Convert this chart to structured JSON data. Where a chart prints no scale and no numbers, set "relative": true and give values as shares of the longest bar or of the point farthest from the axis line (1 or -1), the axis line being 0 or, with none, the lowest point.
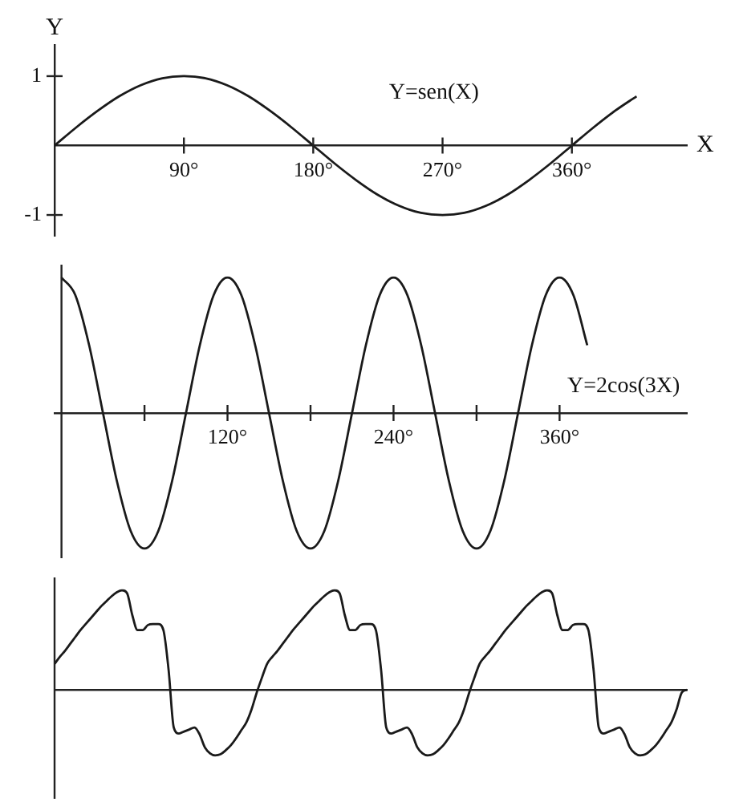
{
  "chart_data": [
    {
      "type": "line",
      "xlabel": "X",
      "ylabel": "Y",
      "xlim": [
        0,
        440
      ],
      "ylim": [
        -1.3,
        1.45
      ],
      "marker": "none",
      "xticks": [
        {
          "value": 90,
          "label": "90°"
        },
        {
          "value": 180,
          "label": "180°"
        },
        {
          "value": 270,
          "label": "270°"
        },
        {
          "value": 360,
          "label": "360°"
        }
      ],
      "yticks": [
        1,
        -1
      ],
      "x": [
        0,
        15,
        30,
        45,
        60,
        75,
        90,
        105,
        120,
        135,
        150,
        165,
        180,
        195,
        210,
        225,
        240,
        255,
        270,
        285,
        300,
        315,
        330,
        345,
        360,
        375,
        390,
        405
      ],
      "series": [
        {
          "name": "Y=sen(X)",
          "color": "#1a1a1a",
          "values": [
            0,
            0.26,
            0.5,
            0.71,
            0.87,
            0.97,
            1,
            0.97,
            0.87,
            0.71,
            0.5,
            0.26,
            0,
            -0.26,
            -0.5,
            -0.71,
            -0.87,
            -0.97,
            -1,
            -0.97,
            -0.87,
            -0.71,
            -0.5,
            -0.26,
            0,
            0.26,
            0.5,
            0.71
          ]
        }
      ]
    },
    {
      "type": "line",
      "relative": true,
      "xlim": [
        -5,
        452
      ],
      "marker": "none",
      "xticks": [
        {
          "value": 60,
          "label": null
        },
        {
          "value": 120,
          "label": "120°"
        },
        {
          "value": 180,
          "label": null
        },
        {
          "value": 240,
          "label": "240°"
        },
        {
          "value": 300,
          "label": null
        },
        {
          "value": 360,
          "label": "360°"
        }
      ],
      "x": [
        0,
        10,
        20,
        30,
        40,
        50,
        60,
        70,
        80,
        90,
        100,
        110,
        120,
        130,
        140,
        150,
        160,
        170,
        180,
        190,
        200,
        210,
        220,
        230,
        240,
        250,
        260,
        270,
        280,
        290,
        300,
        310,
        320,
        330,
        340,
        350,
        360,
        370,
        380
      ],
      "series": [
        {
          "name": "Y=2cos(3X)",
          "color": "#1a1a1a",
          "values": [
            1,
            0.87,
            0.5,
            0,
            -0.5,
            -0.87,
            -1,
            -0.87,
            -0.5,
            0,
            0.5,
            0.87,
            1,
            0.87,
            0.5,
            0,
            -0.5,
            -0.87,
            -1,
            -0.87,
            -0.5,
            0,
            0.5,
            0.87,
            1,
            0.87,
            0.5,
            0,
            -0.5,
            -0.87,
            -1,
            -0.87,
            -0.5,
            0,
            0.5,
            0.87,
            1,
            0.87,
            0.5
          ]
        }
      ]
    },
    {
      "type": "line",
      "relative": true,
      "marker": "none",
      "categories": [
        null,
        null,
        null,
        null,
        null,
        null,
        null,
        null,
        null,
        null,
        null,
        null,
        null,
        null,
        null,
        null,
        null,
        null,
        null,
        null,
        null,
        null,
        null,
        null,
        null,
        null,
        null,
        null,
        null,
        null,
        null,
        null,
        null,
        null,
        null,
        null,
        null,
        null,
        null,
        null,
        null,
        null,
        null,
        null,
        null,
        null,
        null,
        null,
        null,
        null,
        null,
        null,
        null,
        null,
        null,
        null,
        null,
        null,
        null,
        null,
        null,
        null,
        null,
        null,
        null,
        null,
        null,
        null,
        null,
        null,
        null,
        null,
        null,
        null,
        null,
        null,
        null,
        null,
        null,
        null,
        null,
        null,
        null,
        null,
        null,
        null,
        null,
        null,
        null,
        null,
        null,
        null,
        null,
        null,
        null,
        null,
        null,
        null,
        null,
        null,
        null,
        null,
        null,
        null,
        null,
        null,
        null,
        null,
        null,
        null,
        null,
        null,
        null,
        null,
        null,
        null,
        null,
        null,
        null,
        null,
        null,
        null,
        null
      ],
      "series": [
        {
          "color": "#1a1a1a",
          "values": [
            0.26,
            0.33,
            0.39,
            0.46,
            0.53,
            0.6,
            0.66,
            0.72,
            0.78,
            0.84,
            0.89,
            0.94,
            0.98,
            1,
            0.97,
            0.75,
            0.6,
            0.6,
            0.65,
            0.66,
            0.66,
            0.6,
            0.2,
            -0.38,
            -0.44,
            -0.42,
            -0.4,
            -0.38,
            -0.45,
            -0.58,
            -0.64,
            -0.66,
            -0.65,
            -0.61,
            -0.56,
            -0.49,
            -0.41,
            -0.33,
            -0.2,
            -0.03,
            0.12,
            0.26,
            0.33,
            0.39,
            0.46,
            0.53,
            0.6,
            0.66,
            0.72,
            0.78,
            0.84,
            0.89,
            0.94,
            0.98,
            1,
            0.97,
            0.75,
            0.6,
            0.6,
            0.65,
            0.66,
            0.66,
            0.6,
            0.2,
            -0.38,
            -0.44,
            -0.42,
            -0.4,
            -0.38,
            -0.45,
            -0.58,
            -0.64,
            -0.66,
            -0.65,
            -0.61,
            -0.56,
            -0.49,
            -0.41,
            -0.33,
            -0.2,
            -0.03,
            0.12,
            0.26,
            0.33,
            0.39,
            0.46,
            0.53,
            0.6,
            0.66,
            0.72,
            0.78,
            0.84,
            0.89,
            0.94,
            0.98,
            1,
            0.97,
            0.75,
            0.6,
            0.6,
            0.65,
            0.66,
            0.66,
            0.6,
            0.2,
            -0.38,
            -0.44,
            -0.42,
            -0.4,
            -0.38,
            -0.45,
            -0.58,
            -0.64,
            -0.66,
            -0.65,
            -0.61,
            -0.56,
            -0.49,
            -0.41,
            -0.33,
            -0.2,
            -0.03,
            0
          ]
        }
      ]
    }
  ]
}
